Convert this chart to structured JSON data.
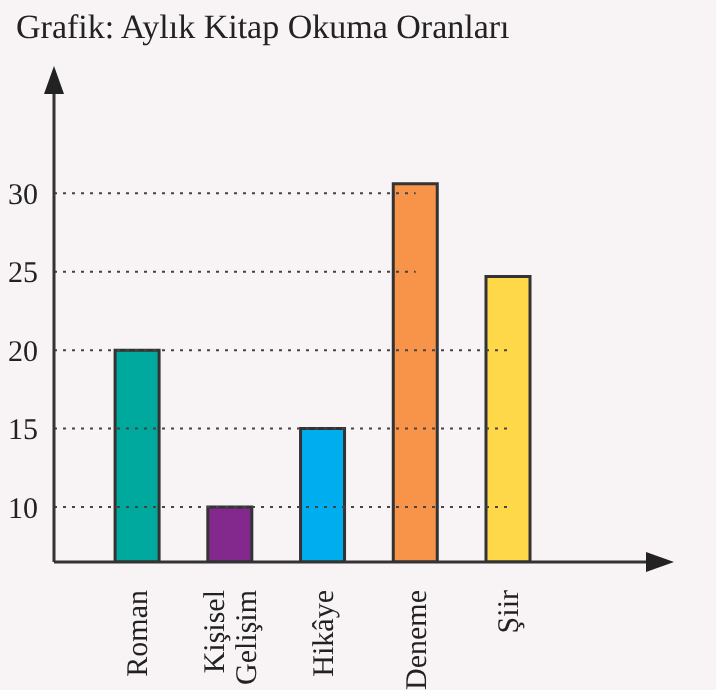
{
  "chart_data": {
    "type": "bar",
    "title": "Grafik: Aylık Kitap Okuma Oranları",
    "categories": [
      "Roman",
      "Kişisel Gelişim",
      "Hikâye",
      "Deneme",
      "Şiir"
    ],
    "values": [
      20,
      10,
      15,
      30.6,
      24.7
    ],
    "colors": [
      "#00a99d",
      "#83288c",
      "#00aeef",
      "#f7944a",
      "#ffd84a"
    ],
    "ylim": [
      6.5,
      37.6
    ],
    "yticks": [
      10,
      15,
      20,
      25,
      30
    ],
    "grid": "y"
  }
}
